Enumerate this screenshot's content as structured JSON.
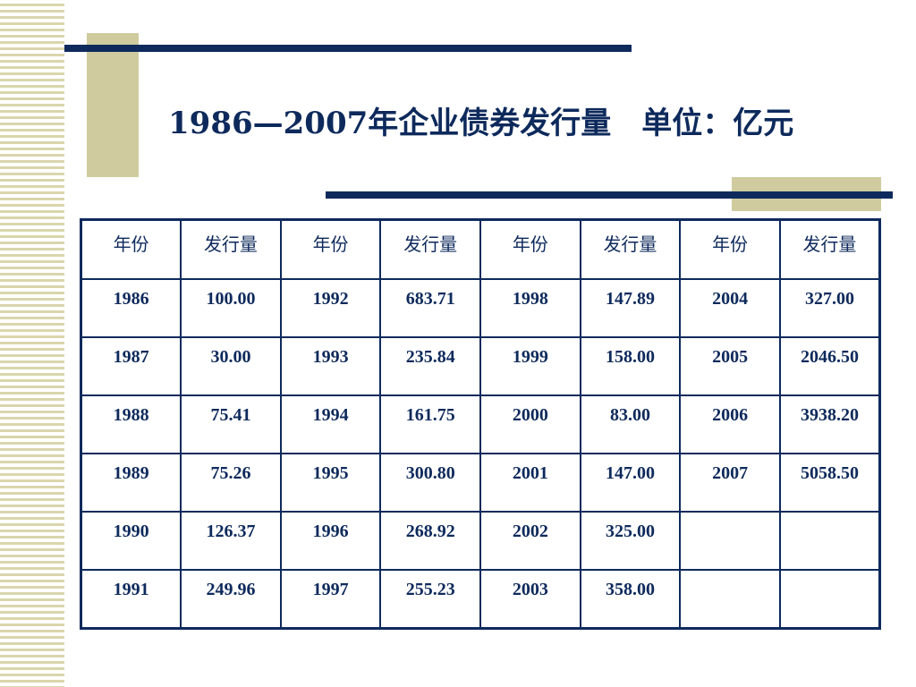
{
  "title": "1986—2007年企业债券发行量　单位：亿元",
  "table": {
    "headers": [
      "年份",
      "发行量",
      "年份",
      "发行量",
      "年份",
      "发行量",
      "年份",
      "发行量"
    ],
    "rows": [
      [
        "1986",
        "100.00",
        "1992",
        "683.71",
        "1998",
        "147.89",
        "2004",
        "327.00"
      ],
      [
        "1987",
        "30.00",
        "1993",
        "235.84",
        "1999",
        "158.00",
        "2005",
        "2046.50"
      ],
      [
        "1988",
        "75.41",
        "1994",
        "161.75",
        "2000",
        "83.00",
        "2006",
        "3938.20"
      ],
      [
        "1989",
        "75.26",
        "1995",
        "300.80",
        "2001",
        "147.00",
        "2007",
        "5058.50"
      ],
      [
        "1990",
        "126.37",
        "1996",
        "268.92",
        "2002",
        "325.00",
        "",
        ""
      ],
      [
        "1991",
        "249.96",
        "1997",
        "255.23",
        "2003",
        "358.00",
        "",
        ""
      ]
    ]
  },
  "colors": {
    "navy": "#0e2a5c",
    "tan": "#cfcb9e"
  }
}
